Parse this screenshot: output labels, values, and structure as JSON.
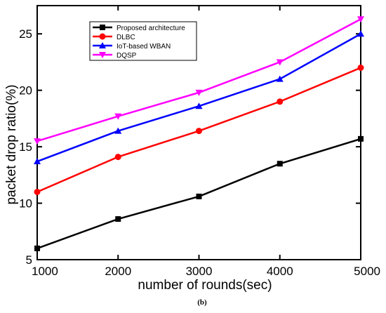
{
  "chart_data": {
    "type": "line",
    "x": [
      1000,
      2000,
      3000,
      4000,
      5000
    ],
    "xlabel": "number of rounds(sec)",
    "ylabel": "packet drop ratio(%)",
    "xlim": [
      1000,
      5000
    ],
    "ylim": [
      5,
      27.5
    ],
    "xticks": [
      "1000",
      "2000",
      "3000",
      "4000",
      "5000"
    ],
    "yticks": [
      "5",
      "10",
      "15",
      "20",
      "25"
    ],
    "grid": false,
    "legend_position": "top-left",
    "series": [
      {
        "name": "Proposed architecture",
        "color": "#000000",
        "marker": "square",
        "values": [
          6.0,
          8.6,
          10.6,
          13.5,
          15.7
        ]
      },
      {
        "name": "DLBC",
        "color": "#ff0000",
        "marker": "circle",
        "values": [
          11.0,
          14.1,
          16.4,
          19.0,
          22.0
        ]
      },
      {
        "name": "IoT-based WBAN",
        "color": "#0000ff",
        "marker": "triangle-up",
        "values": [
          13.7,
          16.4,
          18.6,
          21.0,
          25.0
        ]
      },
      {
        "name": "DQSP",
        "color": "#ff00ff",
        "marker": "triangle-down",
        "values": [
          15.5,
          17.7,
          19.8,
          22.5,
          26.3
        ]
      }
    ]
  },
  "caption": "(b)"
}
